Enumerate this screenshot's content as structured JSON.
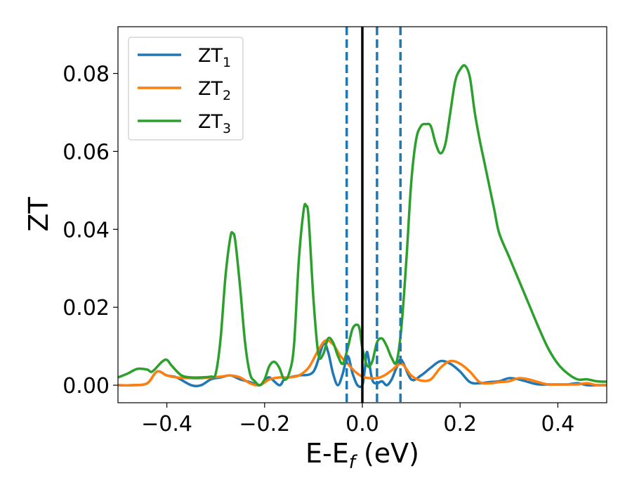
{
  "chart_data": {
    "type": "line",
    "xlabel": "E-E",
    "xlabel_sub": "f",
    "xlabel_unit": " (eV)",
    "ylabel": "ZT",
    "xlim": [
      -0.5,
      0.5
    ],
    "ylim": [
      -0.0045,
      0.092
    ],
    "xticks": [
      -0.4,
      -0.2,
      0.0,
      0.2,
      0.4
    ],
    "xtick_labels": [
      "−0.4",
      "−0.2",
      "0.0",
      "0.2",
      "0.4"
    ],
    "yticks": [
      0.0,
      0.02,
      0.04,
      0.06,
      0.08
    ],
    "ytick_labels": [
      "0.00",
      "0.02",
      "0.04",
      "0.06",
      "0.08"
    ],
    "grid": false,
    "legend_position": "top-left",
    "vertical_lines": [
      {
        "x": 0.0,
        "style": "solid",
        "color": "#000000"
      },
      {
        "x": -0.032,
        "style": "dashed",
        "color": "#1f77b4"
      },
      {
        "x": 0.03,
        "style": "dashed",
        "color": "#1f77b4"
      },
      {
        "x": 0.078,
        "style": "dashed",
        "color": "#1f77b4"
      }
    ],
    "series": [
      {
        "name": "ZT",
        "name_sub": "1",
        "color": "#1f77b4",
        "x": [
          -0.5,
          -0.47,
          -0.44,
          -0.42,
          -0.4,
          -0.38,
          -0.35,
          -0.33,
          -0.31,
          -0.29,
          -0.27,
          -0.25,
          -0.23,
          -0.21,
          -0.2,
          -0.19,
          -0.17,
          -0.16,
          -0.15,
          -0.13,
          -0.1,
          -0.08,
          -0.07,
          -0.06,
          -0.05,
          -0.04,
          -0.03,
          -0.02,
          -0.01,
          0.0,
          0.005,
          0.01,
          0.02,
          0.03,
          0.04,
          0.05,
          0.06,
          0.07,
          0.08,
          0.1,
          0.12,
          0.14,
          0.16,
          0.18,
          0.2,
          0.22,
          0.24,
          0.26,
          0.28,
          0.3,
          0.32,
          0.34,
          0.36,
          0.38,
          0.4,
          0.42,
          0.44,
          0.46,
          0.48,
          0.5
        ],
        "y": [
          0.0,
          0.0,
          0.0005,
          0.0035,
          0.0025,
          0.002,
          0.0,
          0.0,
          0.0015,
          0.002,
          0.0025,
          0.0015,
          0.0008,
          0.0,
          0.001,
          0.002,
          0.0,
          0.0015,
          0.002,
          0.0025,
          0.0035,
          0.0105,
          0.0085,
          0.003,
          0.0,
          0.003,
          0.0075,
          0.003,
          0.0,
          0.0,
          0.004,
          0.0085,
          0.0015,
          0.0005,
          0.001,
          0.0,
          0.0015,
          0.0045,
          0.0065,
          0.0015,
          0.0025,
          0.0045,
          0.0062,
          0.0055,
          0.0035,
          0.0008,
          0.0005,
          0.0008,
          0.001,
          0.0018,
          0.0015,
          0.0008,
          0.0002,
          0.0002,
          0.0002,
          0.0002,
          0.0005,
          0.0,
          0.0,
          0.0
        ]
      },
      {
        "name": "ZT",
        "name_sub": "2",
        "color": "#ff7f0e",
        "x": [
          -0.5,
          -0.47,
          -0.44,
          -0.42,
          -0.4,
          -0.38,
          -0.35,
          -0.33,
          -0.31,
          -0.29,
          -0.27,
          -0.25,
          -0.23,
          -0.21,
          -0.19,
          -0.17,
          -0.15,
          -0.13,
          -0.11,
          -0.09,
          -0.075,
          -0.06,
          -0.045,
          -0.03,
          -0.015,
          0.0,
          0.015,
          0.03,
          0.045,
          0.06,
          0.08,
          0.1,
          0.12,
          0.14,
          0.16,
          0.18,
          0.2,
          0.22,
          0.24,
          0.26,
          0.28,
          0.3,
          0.32,
          0.34,
          0.36,
          0.38,
          0.4,
          0.42,
          0.44,
          0.46,
          0.48,
          0.5
        ],
        "y": [
          0.0,
          0.0,
          0.0005,
          0.0035,
          0.0025,
          0.002,
          0.0018,
          0.0018,
          0.002,
          0.0022,
          0.0025,
          0.002,
          0.0005,
          0.0,
          0.0015,
          0.002,
          0.002,
          0.0025,
          0.0045,
          0.009,
          0.0115,
          0.0105,
          0.0075,
          0.0055,
          0.0035,
          0.0022,
          0.0018,
          0.0018,
          0.0025,
          0.0038,
          0.0055,
          0.0025,
          0.0012,
          0.0015,
          0.0045,
          0.0062,
          0.0055,
          0.0035,
          0.0008,
          0.0005,
          0.0008,
          0.001,
          0.0018,
          0.0015,
          0.0008,
          0.0002,
          0.0002,
          0.0002,
          0.0002,
          0.0005,
          0.0,
          0.0
        ]
      },
      {
        "name": "ZT",
        "name_sub": "3",
        "color": "#2ca02c",
        "x": [
          -0.5,
          -0.48,
          -0.46,
          -0.44,
          -0.43,
          -0.41,
          -0.4,
          -0.39,
          -0.37,
          -0.35,
          -0.33,
          -0.31,
          -0.3,
          -0.29,
          -0.28,
          -0.27,
          -0.265,
          -0.26,
          -0.25,
          -0.24,
          -0.23,
          -0.22,
          -0.21,
          -0.2,
          -0.19,
          -0.18,
          -0.17,
          -0.16,
          -0.15,
          -0.14,
          -0.13,
          -0.12,
          -0.115,
          -0.11,
          -0.1,
          -0.09,
          -0.08,
          -0.07,
          -0.06,
          -0.05,
          -0.04,
          -0.03,
          -0.02,
          -0.01,
          -0.005,
          0.0,
          0.01,
          0.02,
          0.03,
          0.04,
          0.05,
          0.06,
          0.07,
          0.08,
          0.09,
          0.1,
          0.11,
          0.12,
          0.13,
          0.14,
          0.15,
          0.16,
          0.17,
          0.18,
          0.19,
          0.2,
          0.21,
          0.22,
          0.23,
          0.24,
          0.25,
          0.26,
          0.27,
          0.28,
          0.3,
          0.32,
          0.34,
          0.36,
          0.38,
          0.4,
          0.42,
          0.44,
          0.46,
          0.48,
          0.5
        ],
        "y": [
          0.002,
          0.003,
          0.0042,
          0.004,
          0.0035,
          0.006,
          0.0065,
          0.005,
          0.0025,
          0.002,
          0.002,
          0.0022,
          0.003,
          0.012,
          0.028,
          0.038,
          0.039,
          0.037,
          0.025,
          0.011,
          0.003,
          0.001,
          0.0,
          0.0015,
          0.005,
          0.006,
          0.0045,
          0.0015,
          0.003,
          0.01,
          0.032,
          0.045,
          0.046,
          0.043,
          0.022,
          0.008,
          0.008,
          0.012,
          0.011,
          0.0075,
          0.0055,
          0.0095,
          0.0145,
          0.0155,
          0.014,
          0.0095,
          0.005,
          0.006,
          0.011,
          0.012,
          0.01,
          0.007,
          0.006,
          0.015,
          0.032,
          0.052,
          0.063,
          0.0665,
          0.067,
          0.0665,
          0.062,
          0.0595,
          0.062,
          0.07,
          0.078,
          0.081,
          0.082,
          0.079,
          0.07,
          0.063,
          0.057,
          0.051,
          0.045,
          0.039,
          0.033,
          0.027,
          0.021,
          0.015,
          0.0095,
          0.0055,
          0.003,
          0.0015,
          0.0015,
          0.001,
          0.0009
        ]
      }
    ]
  }
}
